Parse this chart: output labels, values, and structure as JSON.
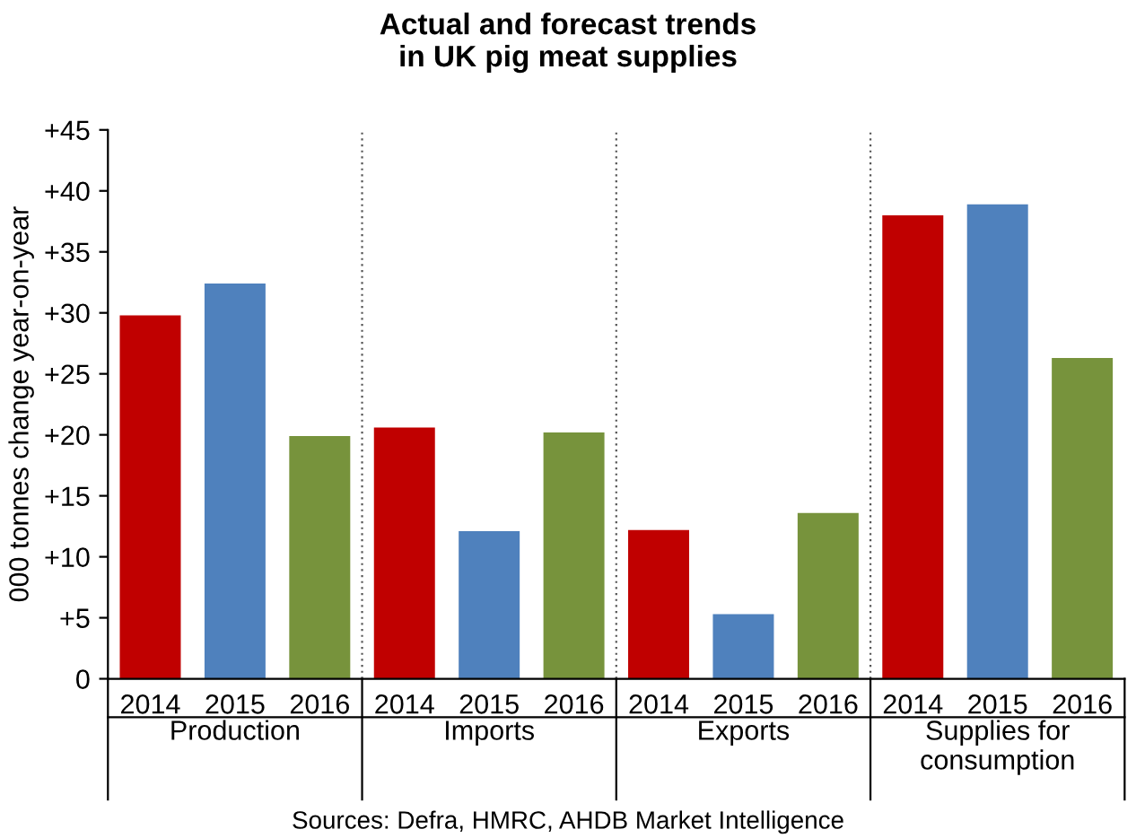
{
  "chart_data": {
    "type": "bar",
    "title": "Actual and forecast trends\nin UK pig meat supplies",
    "ylabel": "000 tonnes change year-on-year",
    "categories": [
      "2014",
      "2015",
      "2016",
      "2014",
      "2015",
      "2016",
      "2014",
      "2015",
      "2016",
      "2014",
      "2015",
      "2016"
    ],
    "values": [
      29.8,
      32.4,
      19.9,
      20.6,
      12.1,
      20.2,
      12.2,
      5.3,
      13.6,
      38.0,
      38.9,
      26.3
    ],
    "colors": [
      "#c00000",
      "#4f81bd",
      "#77933c",
      "#c00000",
      "#4f81bd",
      "#77933c",
      "#c00000",
      "#4f81bd",
      "#77933c",
      "#c00000",
      "#4f81bd",
      "#77933c"
    ],
    "ylim": [
      0,
      45
    ],
    "yticks": [
      0,
      {
        "value": 5,
        "label": "+5"
      },
      {
        "value": 10,
        "label": "+10"
      },
      {
        "value": 15,
        "label": "+15"
      },
      {
        "value": 20,
        "label": "+20"
      },
      {
        "value": 25,
        "label": "+25"
      },
      {
        "value": 30,
        "label": "+30"
      },
      {
        "value": 35,
        "label": "+35"
      },
      {
        "value": 40,
        "label": "+40"
      },
      {
        "value": 45,
        "label": "+45"
      }
    ],
    "grid": false,
    "legend": false,
    "annotations": [
      "Production",
      "Imports",
      "Exports",
      "Supplies for\nconsumption",
      "Sources: Defra, HMRC, AHDB Market Intelligence"
    ]
  }
}
